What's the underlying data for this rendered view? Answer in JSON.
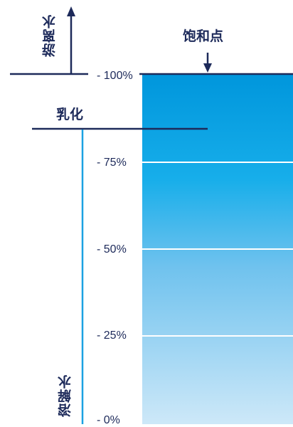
{
  "labels": {
    "saturation_point": "饱和点",
    "free_water": "游离水",
    "emulsified": "乳化",
    "dissolved_water": "溶解水"
  },
  "scale_ticks": [
    "- 100%",
    "- 75%",
    "- 50%",
    "- 25%",
    "- 0%"
  ],
  "colors": {
    "navy": "#1d2a5a",
    "gradient_top": "#0096dc",
    "gradient_bottom": "#cde8f8",
    "dissolved_line": "#1ba1e2"
  }
}
